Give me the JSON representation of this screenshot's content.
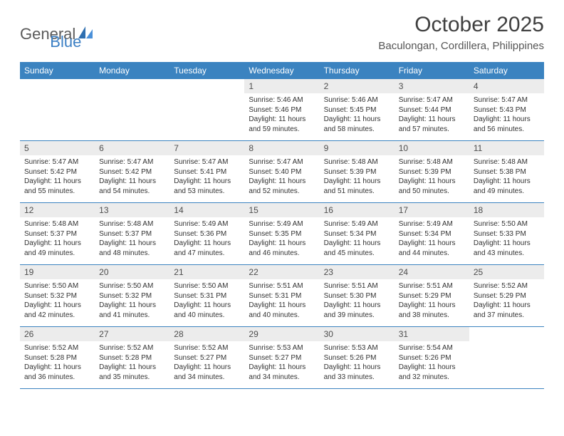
{
  "logo": {
    "word1": "General",
    "word2": "Blue"
  },
  "header": {
    "title": "October 2025",
    "location": "Baculongan, Cordillera, Philippines"
  },
  "colors": {
    "header_bar": "#3b83c0",
    "header_text": "#ffffff",
    "daynum_bg": "#ececec",
    "body_text": "#333333",
    "rule": "#3b83c0"
  },
  "days_of_week": [
    "Sunday",
    "Monday",
    "Tuesday",
    "Wednesday",
    "Thursday",
    "Friday",
    "Saturday"
  ],
  "weeks": [
    [
      {
        "empty": true
      },
      {
        "empty": true
      },
      {
        "empty": true
      },
      {
        "n": "1",
        "sunrise": "Sunrise: 5:46 AM",
        "sunset": "Sunset: 5:46 PM",
        "day1": "Daylight: 11 hours",
        "day2": "and 59 minutes."
      },
      {
        "n": "2",
        "sunrise": "Sunrise: 5:46 AM",
        "sunset": "Sunset: 5:45 PM",
        "day1": "Daylight: 11 hours",
        "day2": "and 58 minutes."
      },
      {
        "n": "3",
        "sunrise": "Sunrise: 5:47 AM",
        "sunset": "Sunset: 5:44 PM",
        "day1": "Daylight: 11 hours",
        "day2": "and 57 minutes."
      },
      {
        "n": "4",
        "sunrise": "Sunrise: 5:47 AM",
        "sunset": "Sunset: 5:43 PM",
        "day1": "Daylight: 11 hours",
        "day2": "and 56 minutes."
      }
    ],
    [
      {
        "n": "5",
        "sunrise": "Sunrise: 5:47 AM",
        "sunset": "Sunset: 5:42 PM",
        "day1": "Daylight: 11 hours",
        "day2": "and 55 minutes."
      },
      {
        "n": "6",
        "sunrise": "Sunrise: 5:47 AM",
        "sunset": "Sunset: 5:42 PM",
        "day1": "Daylight: 11 hours",
        "day2": "and 54 minutes."
      },
      {
        "n": "7",
        "sunrise": "Sunrise: 5:47 AM",
        "sunset": "Sunset: 5:41 PM",
        "day1": "Daylight: 11 hours",
        "day2": "and 53 minutes."
      },
      {
        "n": "8",
        "sunrise": "Sunrise: 5:47 AM",
        "sunset": "Sunset: 5:40 PM",
        "day1": "Daylight: 11 hours",
        "day2": "and 52 minutes."
      },
      {
        "n": "9",
        "sunrise": "Sunrise: 5:48 AM",
        "sunset": "Sunset: 5:39 PM",
        "day1": "Daylight: 11 hours",
        "day2": "and 51 minutes."
      },
      {
        "n": "10",
        "sunrise": "Sunrise: 5:48 AM",
        "sunset": "Sunset: 5:39 PM",
        "day1": "Daylight: 11 hours",
        "day2": "and 50 minutes."
      },
      {
        "n": "11",
        "sunrise": "Sunrise: 5:48 AM",
        "sunset": "Sunset: 5:38 PM",
        "day1": "Daylight: 11 hours",
        "day2": "and 49 minutes."
      }
    ],
    [
      {
        "n": "12",
        "sunrise": "Sunrise: 5:48 AM",
        "sunset": "Sunset: 5:37 PM",
        "day1": "Daylight: 11 hours",
        "day2": "and 49 minutes."
      },
      {
        "n": "13",
        "sunrise": "Sunrise: 5:48 AM",
        "sunset": "Sunset: 5:37 PM",
        "day1": "Daylight: 11 hours",
        "day2": "and 48 minutes."
      },
      {
        "n": "14",
        "sunrise": "Sunrise: 5:49 AM",
        "sunset": "Sunset: 5:36 PM",
        "day1": "Daylight: 11 hours",
        "day2": "and 47 minutes."
      },
      {
        "n": "15",
        "sunrise": "Sunrise: 5:49 AM",
        "sunset": "Sunset: 5:35 PM",
        "day1": "Daylight: 11 hours",
        "day2": "and 46 minutes."
      },
      {
        "n": "16",
        "sunrise": "Sunrise: 5:49 AM",
        "sunset": "Sunset: 5:34 PM",
        "day1": "Daylight: 11 hours",
        "day2": "and 45 minutes."
      },
      {
        "n": "17",
        "sunrise": "Sunrise: 5:49 AM",
        "sunset": "Sunset: 5:34 PM",
        "day1": "Daylight: 11 hours",
        "day2": "and 44 minutes."
      },
      {
        "n": "18",
        "sunrise": "Sunrise: 5:50 AM",
        "sunset": "Sunset: 5:33 PM",
        "day1": "Daylight: 11 hours",
        "day2": "and 43 minutes."
      }
    ],
    [
      {
        "n": "19",
        "sunrise": "Sunrise: 5:50 AM",
        "sunset": "Sunset: 5:32 PM",
        "day1": "Daylight: 11 hours",
        "day2": "and 42 minutes."
      },
      {
        "n": "20",
        "sunrise": "Sunrise: 5:50 AM",
        "sunset": "Sunset: 5:32 PM",
        "day1": "Daylight: 11 hours",
        "day2": "and 41 minutes."
      },
      {
        "n": "21",
        "sunrise": "Sunrise: 5:50 AM",
        "sunset": "Sunset: 5:31 PM",
        "day1": "Daylight: 11 hours",
        "day2": "and 40 minutes."
      },
      {
        "n": "22",
        "sunrise": "Sunrise: 5:51 AM",
        "sunset": "Sunset: 5:31 PM",
        "day1": "Daylight: 11 hours",
        "day2": "and 40 minutes."
      },
      {
        "n": "23",
        "sunrise": "Sunrise: 5:51 AM",
        "sunset": "Sunset: 5:30 PM",
        "day1": "Daylight: 11 hours",
        "day2": "and 39 minutes."
      },
      {
        "n": "24",
        "sunrise": "Sunrise: 5:51 AM",
        "sunset": "Sunset: 5:29 PM",
        "day1": "Daylight: 11 hours",
        "day2": "and 38 minutes."
      },
      {
        "n": "25",
        "sunrise": "Sunrise: 5:52 AM",
        "sunset": "Sunset: 5:29 PM",
        "day1": "Daylight: 11 hours",
        "day2": "and 37 minutes."
      }
    ],
    [
      {
        "n": "26",
        "sunrise": "Sunrise: 5:52 AM",
        "sunset": "Sunset: 5:28 PM",
        "day1": "Daylight: 11 hours",
        "day2": "and 36 minutes."
      },
      {
        "n": "27",
        "sunrise": "Sunrise: 5:52 AM",
        "sunset": "Sunset: 5:28 PM",
        "day1": "Daylight: 11 hours",
        "day2": "and 35 minutes."
      },
      {
        "n": "28",
        "sunrise": "Sunrise: 5:52 AM",
        "sunset": "Sunset: 5:27 PM",
        "day1": "Daylight: 11 hours",
        "day2": "and 34 minutes."
      },
      {
        "n": "29",
        "sunrise": "Sunrise: 5:53 AM",
        "sunset": "Sunset: 5:27 PM",
        "day1": "Daylight: 11 hours",
        "day2": "and 34 minutes."
      },
      {
        "n": "30",
        "sunrise": "Sunrise: 5:53 AM",
        "sunset": "Sunset: 5:26 PM",
        "day1": "Daylight: 11 hours",
        "day2": "and 33 minutes."
      },
      {
        "n": "31",
        "sunrise": "Sunrise: 5:54 AM",
        "sunset": "Sunset: 5:26 PM",
        "day1": "Daylight: 11 hours",
        "day2": "and 32 minutes."
      },
      {
        "empty": true
      }
    ]
  ]
}
